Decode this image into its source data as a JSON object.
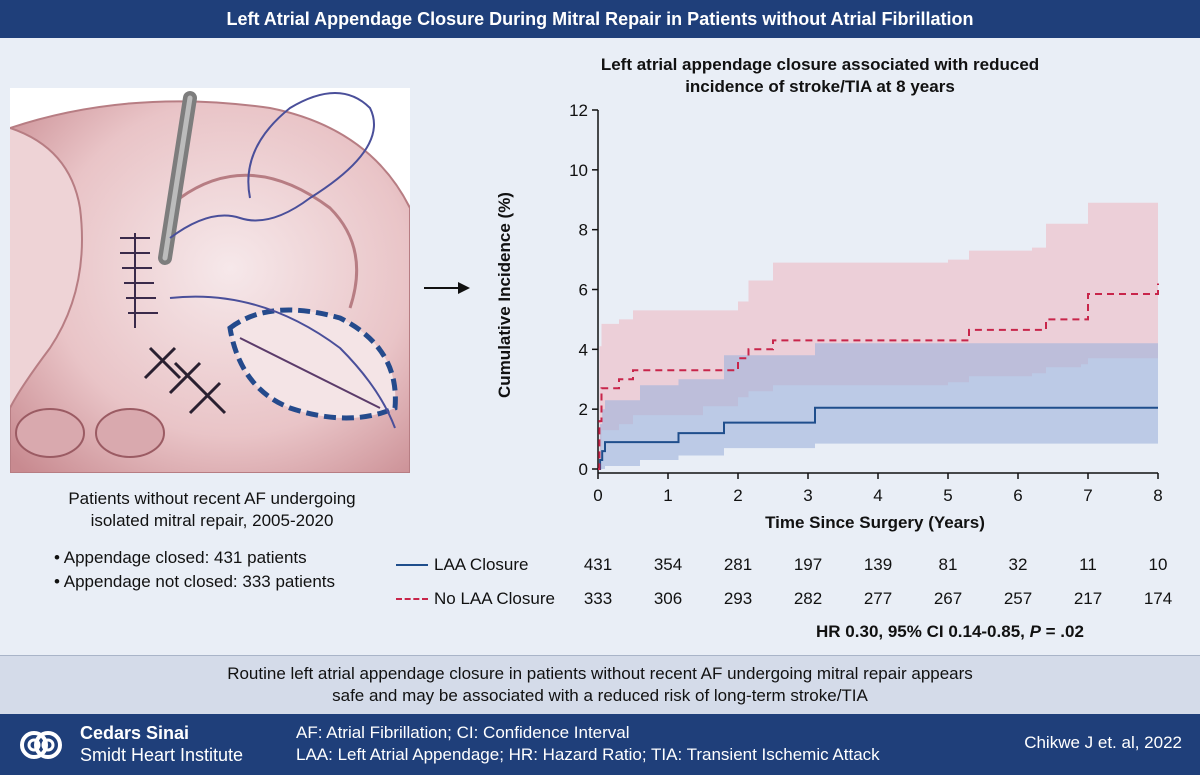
{
  "header": {
    "title": "Left Atrial Appendage Closure During Mitral  Repair in Patients without Atrial Fibrillation"
  },
  "left_panel": {
    "cohort_text": [
      "Patients without recent AF undergoing",
      "isolated mitral repair, 2005-2020"
    ],
    "bullets": [
      "• Appendage closed: 431 patients",
      "• Appendage not closed: 333 patients"
    ]
  },
  "chart_data": {
    "type": "line",
    "title": "Left atrial appendage closure associated with reduced incidence of stroke/TIA at 8 years",
    "xlabel": "Time Since Surgery (Years)",
    "ylabel": "Cumulative Incidence (%)",
    "xlim": [
      0,
      8
    ],
    "ylim": [
      0,
      12
    ],
    "xticks": [
      0,
      1,
      2,
      3,
      4,
      5,
      6,
      7,
      8
    ],
    "yticks": [
      0,
      2,
      4,
      6,
      8,
      10,
      12
    ],
    "series": [
      {
        "name": "LAA Closure",
        "color": "#1f4e8c",
        "style": "solid",
        "x": [
          0,
          0.03,
          0.06,
          0.1,
          0.6,
          0.6,
          1.15,
          1.15,
          1.8,
          1.8,
          3.1,
          3.1,
          8.0
        ],
        "y": [
          0,
          0.3,
          0.6,
          0.9,
          0.9,
          0.9,
          1.2,
          1.2,
          1.55,
          1.55,
          1.55,
          2.05,
          2.05
        ],
        "ci_upper": [
          0.1,
          1.5,
          2.0,
          2.3,
          2.6,
          2.8,
          2.8,
          3.0,
          3.5,
          3.8,
          4.0,
          4.2,
          4.2
        ],
        "ci_lower": [
          0,
          0,
          0,
          0.1,
          0.2,
          0.3,
          0.35,
          0.45,
          0.6,
          0.7,
          0.8,
          0.85,
          0.85
        ]
      },
      {
        "name": "No LAA Closure",
        "color": "#c8254a",
        "style": "dashed",
        "x": [
          0,
          0.02,
          0.05,
          0.3,
          0.5,
          1.5,
          2.0,
          2.15,
          2.5,
          5.0,
          5.3,
          6.2,
          6.4,
          6.9,
          7.0,
          8.0
        ],
        "y": [
          0,
          1.6,
          2.7,
          3.0,
          3.3,
          3.3,
          3.7,
          4.0,
          4.3,
          4.3,
          4.65,
          4.65,
          5.0,
          5.0,
          5.85,
          6.2
        ],
        "ci_upper": [
          0.5,
          4.1,
          4.85,
          5.0,
          5.3,
          5.3,
          5.6,
          6.3,
          6.9,
          7.0,
          7.3,
          7.4,
          8.2,
          8.2,
          8.9,
          9.5
        ],
        "ci_lower": [
          0,
          0.3,
          1.3,
          1.5,
          1.8,
          2.1,
          2.4,
          2.6,
          2.8,
          2.9,
          3.1,
          3.2,
          3.4,
          3.5,
          3.7,
          4.0
        ]
      }
    ]
  },
  "risk_table": {
    "rows": [
      {
        "label": "LAA Closure",
        "values": [
          "431",
          "354",
          "281",
          "197",
          "139",
          "81",
          "32",
          "11",
          "10"
        ]
      },
      {
        "label": "No LAA Closure",
        "values": [
          "333",
          "306",
          "293",
          "282",
          "277",
          "267",
          "257",
          "217",
          "174"
        ]
      }
    ]
  },
  "hr_text": {
    "main": "HR 0.30, 95% CI 0.14-0.85, ",
    "p_label": "P",
    "p_value": " = .02"
  },
  "conclusion": [
    "Routine left atrial appendage closure in patients without recent AF undergoing mitral repair appears",
    "safe and may be associated with a reduced risk of long-term stroke/TIA"
  ],
  "footer": {
    "org_name": "Cedars Sinai",
    "org_sub": "Smidt Heart Institute",
    "abbreviations": [
      "AF: Atrial Fibrillation; CI: Confidence Interval",
      "LAA: Left Atrial Appendage; HR: Hazard Ratio; TIA: Transient Ischemic Attack"
    ],
    "citation": "Chikwe J et. al, 2022"
  },
  "colors": {
    "header_bg": "#1f3f7a",
    "main_bg": "#e9eef6",
    "conclusion_bg": "#d4dbe9",
    "laa_line": "#1f4e8c",
    "no_laa_line": "#c8254a",
    "laa_band": "#9fb2dc",
    "no_laa_band": "#efb7bf"
  },
  "icons": {
    "logo": "cedars-sinai-logo-icon",
    "arrow": "right-arrow-icon"
  }
}
